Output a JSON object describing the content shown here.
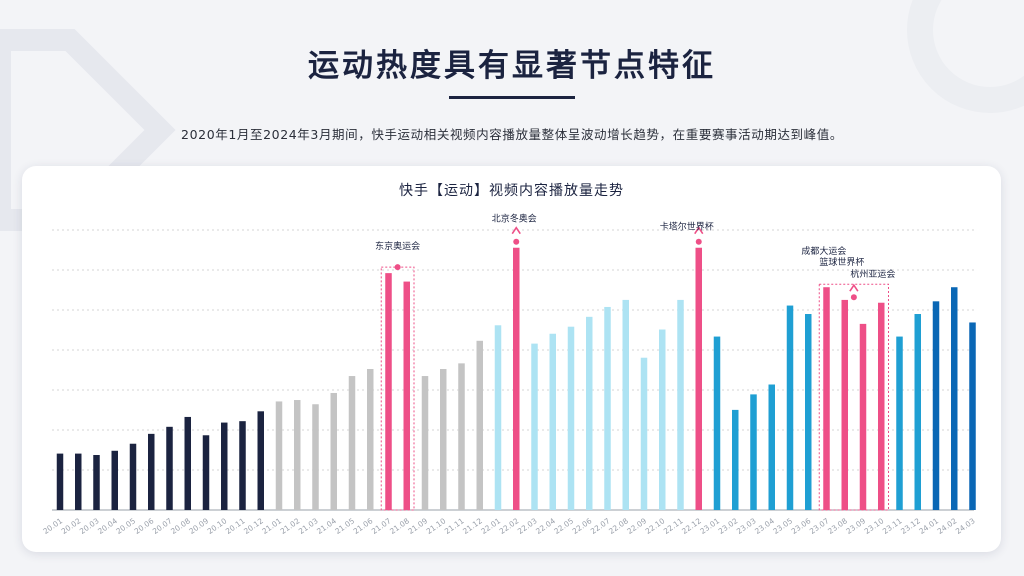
{
  "header": {
    "title": "运动热度具有显著节点特征",
    "subtitle": "2020年1月至2024年3月期间，快手运动相关视频内容播放量整体呈波动增长趋势，在重要赛事活动期达到峰值。"
  },
  "chart_data": {
    "type": "bar",
    "title": "快手【运动】视频内容播放量走势",
    "xlabel": "",
    "ylabel": "",
    "ylim": [
      0,
      100
    ],
    "grid": true,
    "categories": [
      "20.01",
      "20.02",
      "20.03",
      "20.04",
      "20.05",
      "20.06",
      "20.07",
      "20.08",
      "20.09",
      "20.10",
      "20.11",
      "20.12",
      "21.01",
      "21.02",
      "21.03",
      "21.04",
      "21.05",
      "21.06",
      "21.07",
      "21.08",
      "21.09",
      "21.10",
      "21.11",
      "21.12",
      "22.01",
      "22.02",
      "22.03",
      "22.04",
      "22.05",
      "22.06",
      "22.07",
      "22.08",
      "22.09",
      "22.10",
      "22.11",
      "22.12",
      "23.01",
      "23.02",
      "23.03",
      "23.04",
      "23.05",
      "23.06",
      "23.07",
      "23.08",
      "23.09",
      "23.10",
      "23.11",
      "23.12",
      "24.01",
      "24.02",
      "24.03"
    ],
    "values": [
      20,
      20,
      19.5,
      21,
      23.5,
      27,
      29.5,
      33,
      26.5,
      31,
      31.5,
      35,
      38.5,
      39,
      37.5,
      41.5,
      47.5,
      50,
      84,
      81,
      47.5,
      50,
      52,
      60,
      65.5,
      93,
      59,
      62.5,
      65,
      68.5,
      72,
      74.5,
      54,
      64,
      74.5,
      93,
      61.5,
      35.5,
      41,
      44.5,
      72.5,
      69.5,
      79,
      74.5,
      66,
      73.5,
      61.5,
      69.5,
      74,
      79,
      66.5
    ],
    "colors": {
      "2020": "#1b2340",
      "2021": "#c4c4c4",
      "2022": "#ade3f3",
      "2023": "#1f9fd3",
      "2024": "#0a67b5",
      "event": "#ee4f87",
      "grid": "#d6d6d6"
    },
    "series_groups": [
      {
        "name": "2020",
        "start": 0,
        "end": 11
      },
      {
        "name": "2021",
        "start": 12,
        "end": 23
      },
      {
        "name": "2022",
        "start": 24,
        "end": 35
      },
      {
        "name": "2023",
        "start": 36,
        "end": 47
      },
      {
        "name": "2024",
        "start": 48,
        "end": 50
      }
    ],
    "highlights": [
      18,
      19,
      25,
      35,
      42,
      43,
      44,
      45
    ],
    "annotations": [
      {
        "label": "东京奥运会",
        "bars": [
          18,
          19
        ],
        "boxed": true
      },
      {
        "label": "北京冬奥会",
        "bars": [
          25
        ],
        "boxed": false
      },
      {
        "label": "卡塔尔世界杯",
        "bars": [
          35
        ],
        "boxed": false
      },
      {
        "label": "成都大运会",
        "bars": [
          42,
          43,
          44,
          45
        ],
        "boxed": true
      },
      {
        "label": "篮球世界杯",
        "bars": [
          42,
          43,
          44,
          45
        ],
        "boxed": false
      },
      {
        "label": "杭州亚运会",
        "bars": [
          42,
          43,
          44,
          45
        ],
        "boxed": false
      }
    ]
  }
}
